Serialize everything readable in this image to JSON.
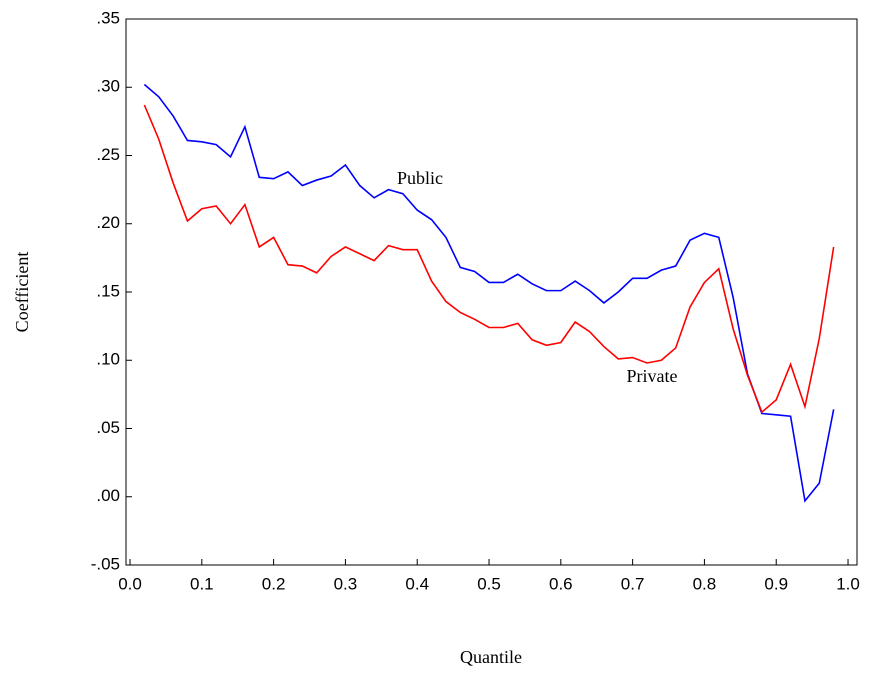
{
  "chart_data": {
    "type": "line",
    "x_label": "Quantile",
    "y_label": "Coefficient",
    "x": [
      0.02,
      0.04,
      0.06,
      0.08,
      0.1,
      0.12,
      0.14,
      0.16,
      0.18,
      0.2,
      0.22,
      0.24,
      0.26,
      0.28,
      0.3,
      0.32,
      0.34,
      0.36,
      0.38,
      0.4,
      0.42,
      0.44,
      0.46,
      0.48,
      0.5,
      0.52,
      0.54,
      0.56,
      0.58,
      0.6,
      0.62,
      0.64,
      0.66,
      0.68,
      0.7,
      0.72,
      0.74,
      0.76,
      0.78,
      0.8,
      0.82,
      0.84,
      0.86,
      0.88,
      0.9,
      0.92,
      0.94,
      0.96,
      0.98
    ],
    "series": [
      {
        "name": "Public",
        "color": "#0000ff",
        "values": [
          0.302,
          0.293,
          0.279,
          0.261,
          0.26,
          0.258,
          0.249,
          0.271,
          0.234,
          0.233,
          0.238,
          0.228,
          0.232,
          0.235,
          0.243,
          0.228,
          0.219,
          0.225,
          0.222,
          0.21,
          0.203,
          0.19,
          0.168,
          0.165,
          0.157,
          0.157,
          0.163,
          0.156,
          0.151,
          0.151,
          0.158,
          0.151,
          0.142,
          0.15,
          0.16,
          0.16,
          0.166,
          0.169,
          0.188,
          0.193,
          0.19,
          0.146,
          0.09,
          0.061,
          0.06,
          0.059,
          -0.003,
          0.01,
          0.064
        ]
      },
      {
        "name": "Private",
        "color": "#ff0000",
        "values": [
          0.287,
          0.262,
          0.23,
          0.202,
          0.211,
          0.213,
          0.2,
          0.214,
          0.183,
          0.19,
          0.17,
          0.169,
          0.164,
          0.176,
          0.183,
          0.178,
          0.173,
          0.184,
          0.181,
          0.181,
          0.158,
          0.143,
          0.135,
          0.13,
          0.124,
          0.124,
          0.127,
          0.115,
          0.111,
          0.113,
          0.128,
          0.121,
          0.11,
          0.101,
          0.102,
          0.098,
          0.1,
          0.109,
          0.139,
          0.157,
          0.167,
          0.123,
          0.089,
          0.062,
          0.071,
          0.097,
          0.066,
          0.116,
          0.183
        ]
      }
    ],
    "xlim": [
      -0.0056,
      1.0125
    ],
    "xticks": [
      {
        "value": 0,
        "label": "0.0"
      },
      0.1,
      0.2,
      0.3,
      0.4,
      0.5,
      0.6,
      0.7,
      0.8,
      0.9,
      {
        "value": 1,
        "label": "1.0"
      }
    ],
    "ylim": [
      -0.05,
      0.35
    ],
    "yticks": [
      {
        "value": -0.05,
        "label": "-.05"
      },
      {
        "value": 0,
        "label": ".00"
      },
      {
        "value": 0.05,
        "label": ".05"
      },
      {
        "value": 0.1,
        "label": ".10"
      },
      {
        "value": 0.15,
        "label": ".15"
      },
      {
        "value": 0.2,
        "label": ".20"
      },
      {
        "value": 0.25,
        "label": ".25"
      },
      {
        "value": 0.3,
        "label": ".30"
      },
      {
        "value": 0.35,
        "label": ".35"
      }
    ],
    "grid": false
  }
}
